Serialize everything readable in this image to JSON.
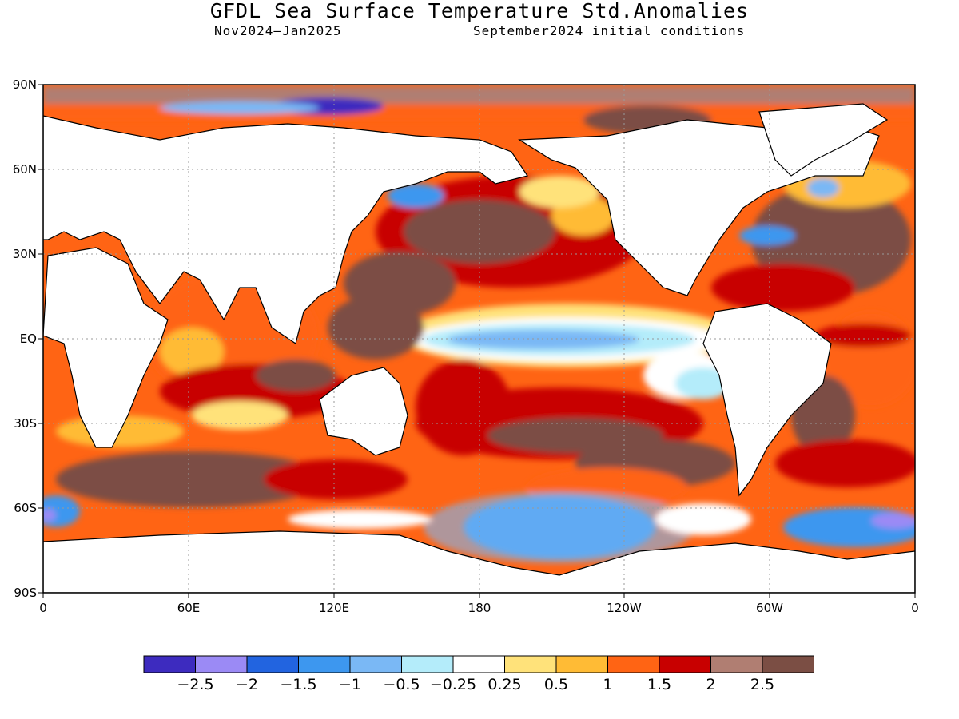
{
  "title": "GFDL Sea Surface Temperature Std.Anomalies",
  "subtitle_left": "Nov2024–Jan2025",
  "subtitle_right": "September2024 initial conditions",
  "map": {
    "lat_labels": [
      "90N",
      "60N",
      "30N",
      "EQ",
      "30S",
      "60S",
      "90S"
    ],
    "lon_labels": [
      "0",
      "60E",
      "120E",
      "180",
      "120W",
      "60W",
      "0"
    ],
    "grid": "dotted"
  },
  "colorbar": {
    "colors": [
      "#3d2bbf",
      "#9b8af5",
      "#2264e0",
      "#3d97ef",
      "#7ab8f5",
      "#b4ecfa",
      "#ffffff",
      "#ffe27a",
      "#ffbb35",
      "#ff6414",
      "#c80000",
      "#b07e72",
      "#7b4e44"
    ],
    "labels": [
      "−2.5",
      "−2",
      "−1.5",
      "−1",
      "−0.5",
      "−0.25",
      "0.25",
      "0.5",
      "1",
      "1.5",
      "2",
      "2.5"
    ]
  }
}
